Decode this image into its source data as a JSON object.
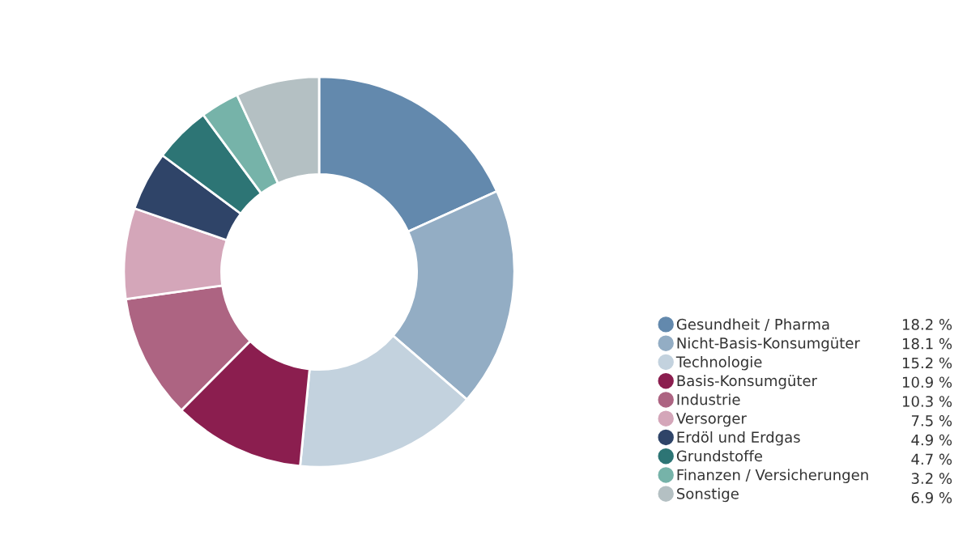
{
  "chart_data": {
    "type": "donut",
    "categories": [
      "Gesundheit / Pharma",
      "Nicht-Basis-Konsumgüter",
      "Technologie",
      "Basis-Konsumgüter",
      "Industrie",
      "Versorger",
      "Erdöl und Erdgas",
      "Grundstoffe",
      "Finanzen / Versicherungen",
      "Sonstige"
    ],
    "values": [
      18.2,
      18.1,
      15.2,
      10.9,
      10.3,
      7.5,
      4.9,
      4.7,
      3.2,
      6.9
    ],
    "value_labels": [
      "18.2 %",
      "18.1 %",
      "15.2 %",
      "10.9 %",
      "10.3 %",
      "7.5 %",
      "4.9 %",
      "4.7 %",
      "3.2 %",
      "6.9 %"
    ],
    "colors": [
      "#6389ad",
      "#93adc4",
      "#c3d2de",
      "#8b1e4f",
      "#ad6482",
      "#d4a6b9",
      "#2f4468",
      "#2d7575",
      "#76b3a9",
      "#b4c0c3"
    ],
    "legend": "bottom right"
  }
}
